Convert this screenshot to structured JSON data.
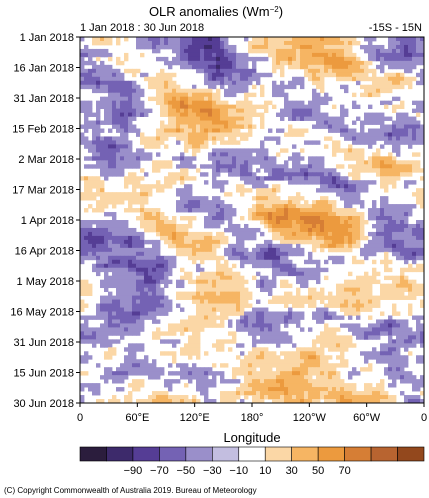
{
  "chart_data": {
    "type": "heatmap",
    "title": "OLR anomalies (Wm⁻²)",
    "subtitle_left": "1 Jan 2018 : 30 Jun 2018",
    "subtitle_right": "-15S - 15N",
    "xlabel": "Longitude",
    "ylabel": "",
    "x_ticks": [
      "0",
      "60°E",
      "120°E",
      "180°",
      "120°W",
      "60°W",
      "0"
    ],
    "x_range": [
      0,
      360
    ],
    "y_ticks": [
      "1 Jan 2018",
      "16 Jan 2018",
      "31 Jan 2018",
      "15 Feb 2018",
      "2 Mar 2018",
      "17 Mar 2018",
      "1 Apr 2018",
      "16 Apr 2018",
      "1 May 2018",
      "16 May 2018",
      "31 Jun 2018",
      "15 Jun 2018",
      "30 Jun 2018"
    ],
    "y_range": [
      "1 Jan 2018",
      "30 Jun 2018"
    ],
    "colorbar": {
      "label_values": [
        "−90",
        "−70",
        "−50",
        "−30",
        "−10",
        "10",
        "30",
        "50",
        "70"
      ],
      "colors": [
        "#2b1d3d",
        "#3d2a6b",
        "#553d95",
        "#7462b4",
        "#9a8fca",
        "#c3bee0",
        "#ffffff",
        "#fbd7a6",
        "#f6b563",
        "#ec9a3e",
        "#d67e35",
        "#b86430",
        "#93481d"
      ]
    },
    "features": [
      {
        "lon": 110,
        "day": 4,
        "value": -45
      },
      {
        "lon": 150,
        "day": 18,
        "value": -50
      },
      {
        "lon": 190,
        "day": 12,
        "value": 35
      },
      {
        "lon": 250,
        "day": 8,
        "value": 30
      },
      {
        "lon": 350,
        "day": 3,
        "value": -25
      },
      {
        "lon": 100,
        "day": 36,
        "value": 45
      },
      {
        "lon": 135,
        "day": 42,
        "value": 40
      },
      {
        "lon": 55,
        "day": 35,
        "value": -30
      },
      {
        "lon": 320,
        "day": 48,
        "value": -35
      },
      {
        "lon": 20,
        "day": 58,
        "value": -35
      },
      {
        "lon": 85,
        "day": 68,
        "value": 30
      },
      {
        "lon": 150,
        "day": 62,
        "value": -30
      },
      {
        "lon": 230,
        "day": 70,
        "value": -25
      },
      {
        "lon": 300,
        "day": 60,
        "value": 30
      },
      {
        "lon": 250,
        "day": 95,
        "value": 30
      },
      {
        "lon": 210,
        "day": 88,
        "value": 35
      },
      {
        "lon": 45,
        "day": 102,
        "value": -40
      },
      {
        "lon": 75,
        "day": 115,
        "value": -35
      },
      {
        "lon": 125,
        "day": 100,
        "value": 30
      },
      {
        "lon": 170,
        "day": 108,
        "value": -30
      },
      {
        "lon": 320,
        "day": 105,
        "value": -25
      },
      {
        "lon": 60,
        "day": 135,
        "value": -45
      },
      {
        "lon": 130,
        "day": 130,
        "value": 35
      },
      {
        "lon": 280,
        "day": 128,
        "value": 30
      },
      {
        "lon": 200,
        "day": 140,
        "value": -25
      },
      {
        "lon": 120,
        "day": 155,
        "value": 30
      },
      {
        "lon": 250,
        "day": 160,
        "value": 35
      },
      {
        "lon": 330,
        "day": 150,
        "value": -25
      },
      {
        "lon": 40,
        "day": 170,
        "value": -30
      },
      {
        "lon": 180,
        "day": 175,
        "value": 30
      },
      {
        "lon": 300,
        "day": 178,
        "value": 30
      }
    ]
  },
  "copyright": "(C) Copyright Commonwealth of Australia 2019. Bureau of Meteorology"
}
